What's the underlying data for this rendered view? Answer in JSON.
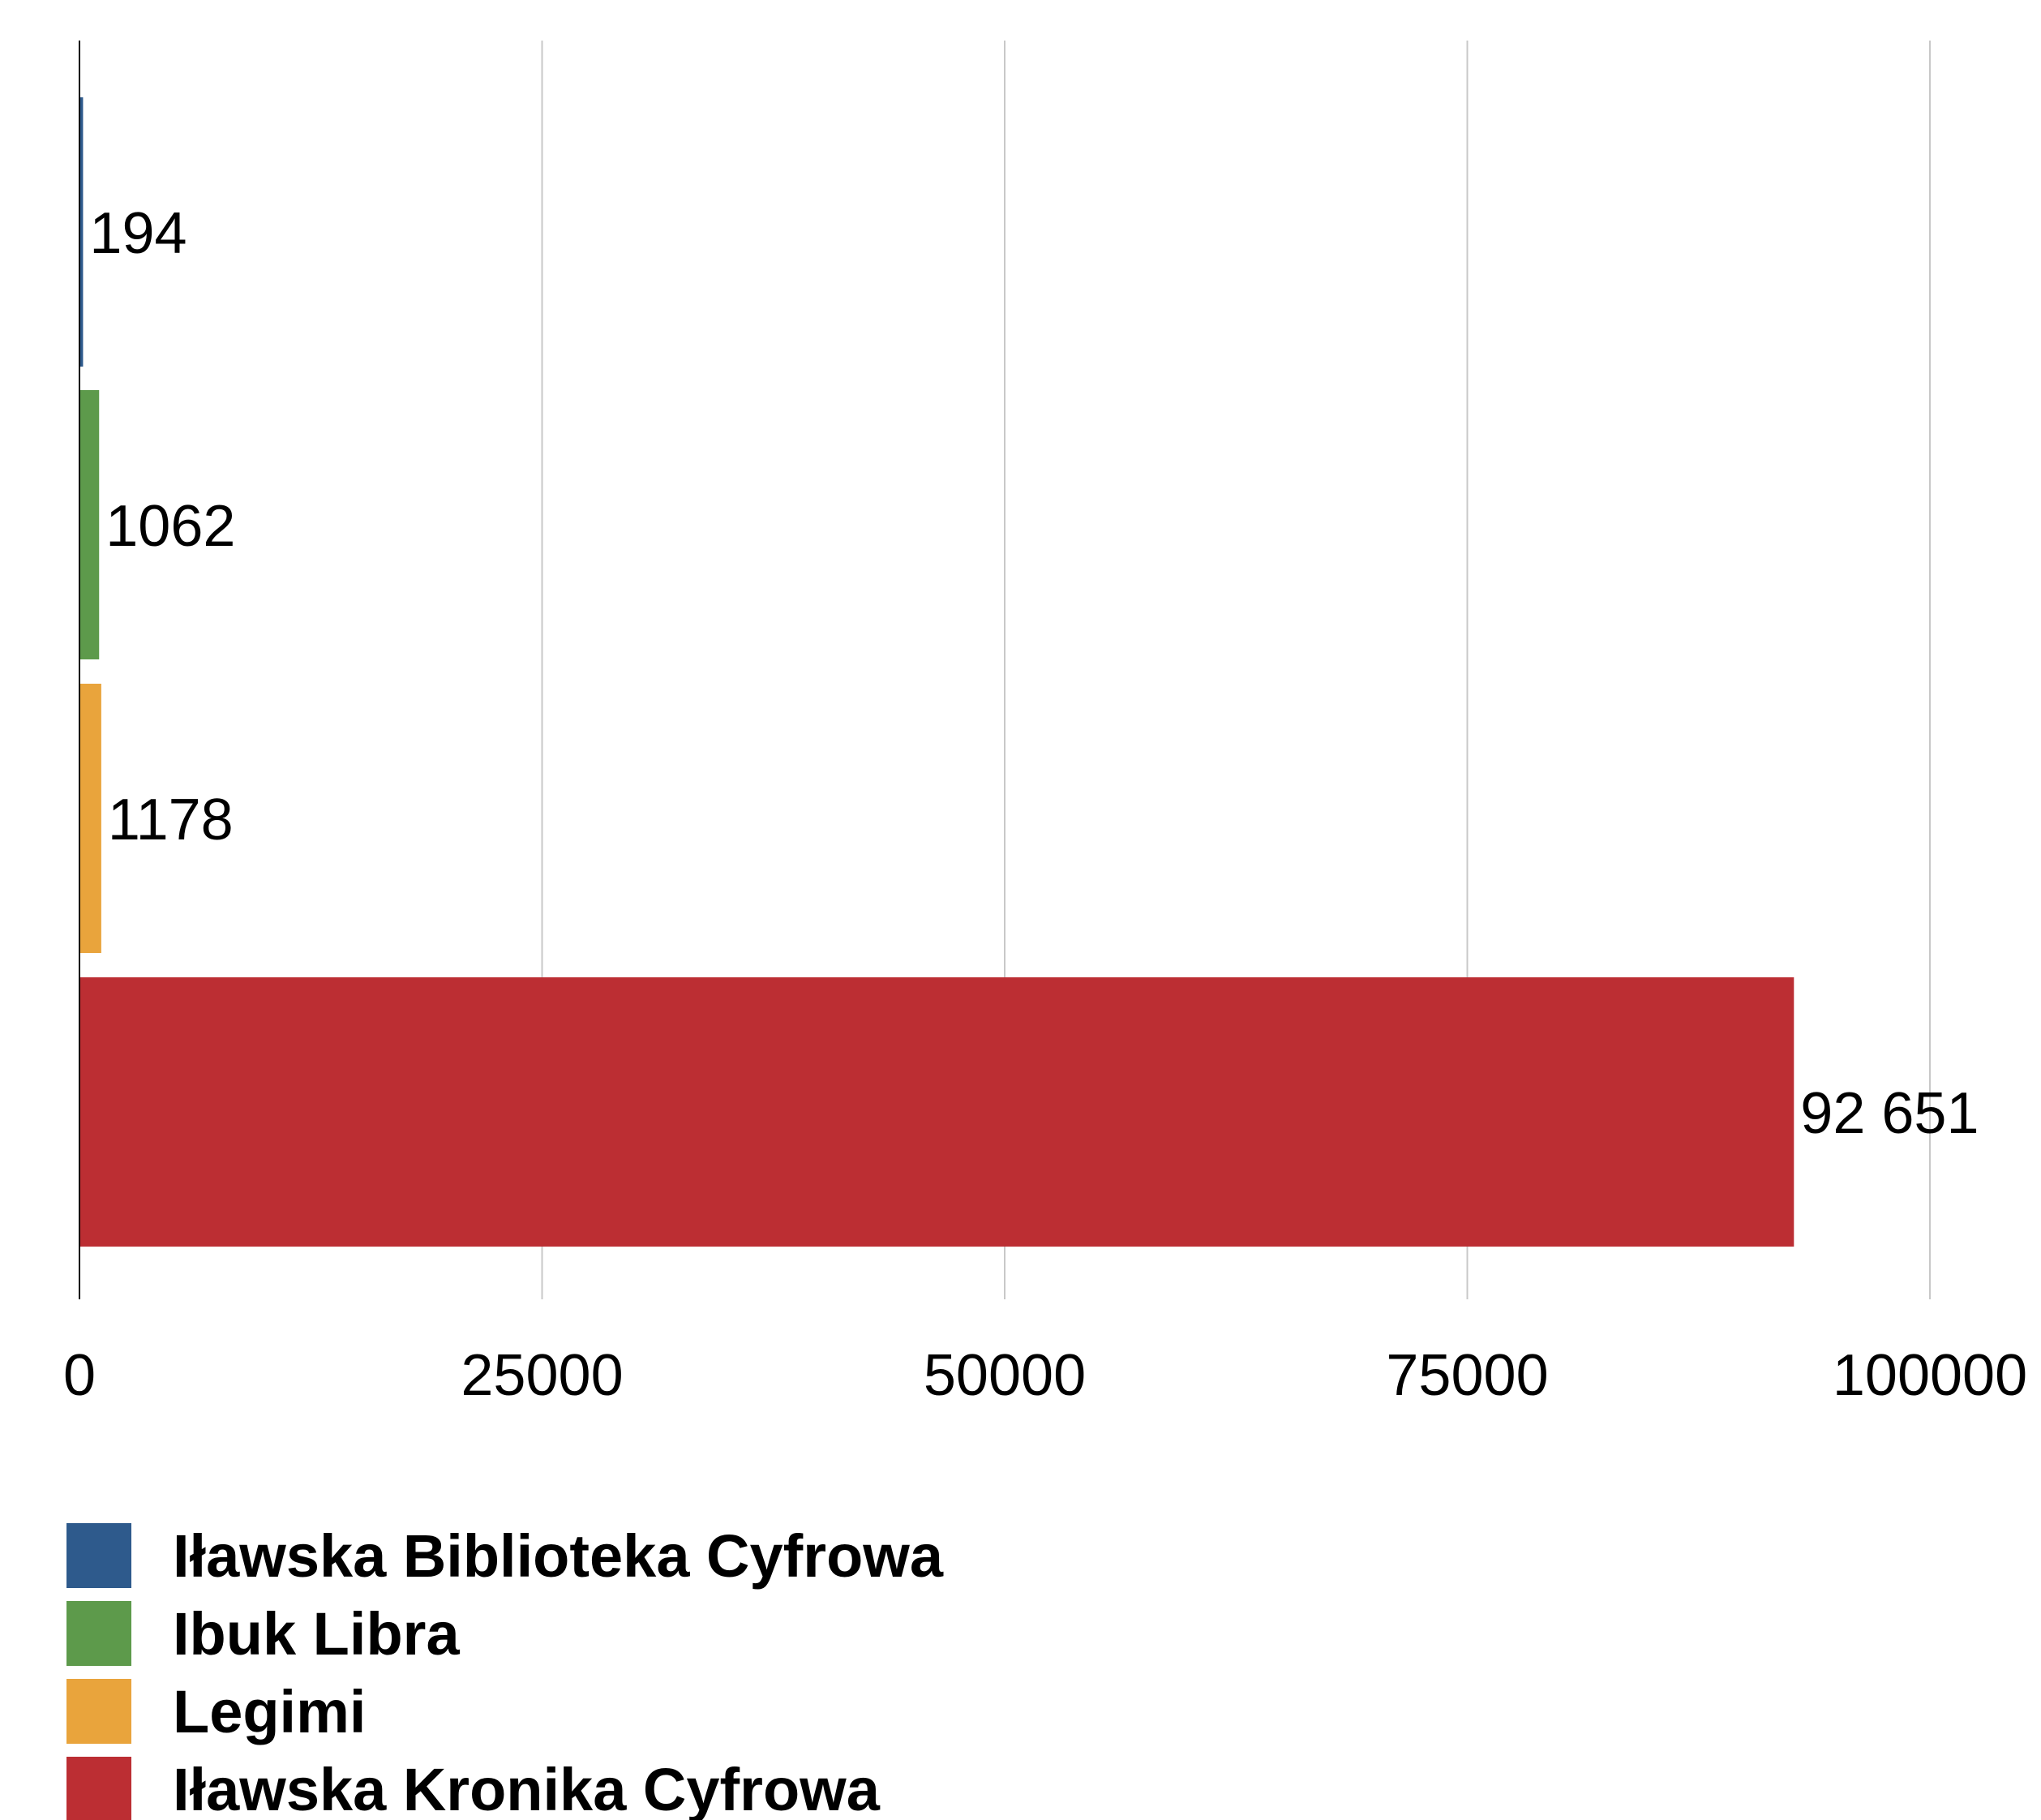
{
  "chart_data": {
    "type": "bar",
    "orientation": "horizontal",
    "categories": [
      "Iławska Biblioteka Cyfrowa",
      "Ibuk Libra",
      "Legimi",
      "Iławska Kronika Cyfrowa"
    ],
    "values": [
      194,
      1062,
      1178,
      92651
    ],
    "data_labels": [
      "194",
      "1062",
      "1178",
      "92 651"
    ],
    "colors": [
      "#2e5a8c",
      "#5d9a4b",
      "#e9a43c",
      "#bc2e33"
    ],
    "xlim": [
      0,
      100000
    ],
    "x_ticks": [
      0,
      25000,
      50000,
      75000,
      100000
    ],
    "x_tick_labels": [
      "0",
      "25000",
      "50000",
      "75000",
      "100000"
    ],
    "grid": true,
    "grid_color": "#c8c8c8",
    "legend_position": "bottom-left",
    "title": "",
    "xlabel": "",
    "ylabel": ""
  }
}
